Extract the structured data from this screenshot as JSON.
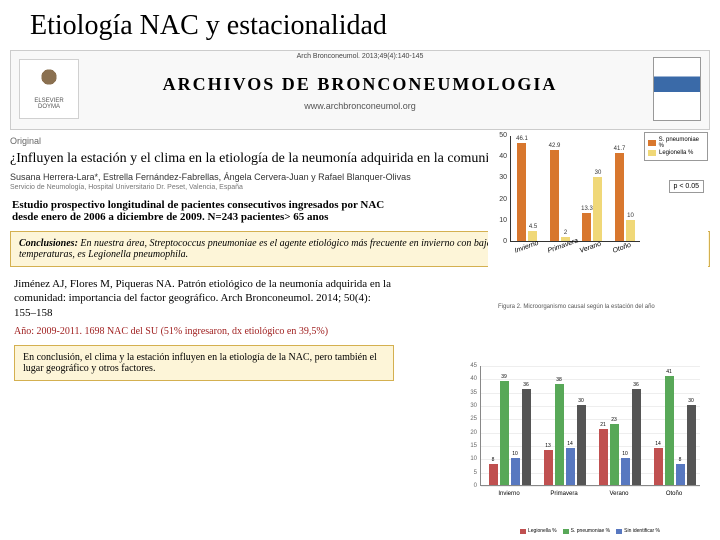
{
  "title": "Etiología NAC y estacionalidad",
  "journal": {
    "citation": "Arch Bronconeumol. 2013;49(4):140-145",
    "name": "ARCHIVOS DE BRONCONEUMOLOGIA",
    "url": "www.archbronconeumol.org",
    "elsevier1": "ELSEVIER",
    "elsevier2": "DOYMA"
  },
  "article": {
    "section": "Original",
    "title": "¿Influyen la estación y el clima en la etiología de la neumonía adquirida en la comunidad?",
    "authors": "Susana Herrera-Lara*, Estrella Fernández-Fabrellas, Ángela Cervera-Juan y Rafael Blanquer-Olivas",
    "affil": "Servicio de Neumología, Hospital Universitario Dr. Peset, Valencia, España"
  },
  "study": {
    "line1": "Estudio prospectivo longitudinal de pacientes consecutivos ingresados por NAC",
    "line2": "desde enero de 2006 a diciembre de 2009.        N=243 pacientes> 65 anos"
  },
  "conclusion1": {
    "lead": "Conclusiones:",
    "body": " En nuestra área, Streptococcus pneumoniae es el agente etiológico más frecuente en invierno con bajas temperaturas mientras que en verano, con altas temperaturas, es Legionella pneumophila."
  },
  "ref2": "Jiménez AJ,  Flores M, Piqueras NA. Patrón etiológico de la neumonía adquirida en la comunidad: importancia del factor geográfico. Arch Bronconeumol. 2014; 50(4): 155–158",
  "yearline": "Año: 2009-2011. 1698 NAC del SU (51% ingresaron, dx etiológico en 39,5%)",
  "finalbox": "En conclusión, el clima y la estación influyen en la etiología de la NAC, pero también el lugar geográfico y otros factores.",
  "chart1": {
    "type": "bar",
    "ylim": [
      0,
      50
    ],
    "ytick_step": 10,
    "yticks": [
      "0",
      "10",
      "20",
      "30",
      "40",
      "50"
    ],
    "colors": {
      "spneu": "#d8772e",
      "legio": "#f0d878"
    },
    "categories": [
      "Invierno",
      "Primavera",
      "Verano",
      "Otoño"
    ],
    "spneu_values": [
      46.1,
      42.9,
      13.3,
      41.7
    ],
    "legio_values": [
      4.5,
      2,
      30,
      10
    ],
    "legend": {
      "a": "S. pneumoniae %",
      "b": "Legionella %"
    },
    "pval": "p < 0.05",
    "caption": "Figura 2.  Microorganismo causal según la estación del año"
  },
  "chart2": {
    "type": "bar",
    "ylim": [
      0,
      45
    ],
    "ytick_step": 5,
    "yticks": [
      "0",
      "5",
      "10",
      "15",
      "20",
      "25",
      "30",
      "35",
      "40",
      "45"
    ],
    "categories": [
      "Invierno",
      "Primavera",
      "Verano",
      "Otoño"
    ],
    "colors": {
      "c1": "#c05050",
      "c2": "#58a858",
      "c3": "#5878c0",
      "c4": "#555555"
    },
    "legend": {
      "c1": "Legionella %",
      "c2": "S. pneumoniae %",
      "c3": "Sin identificar %",
      "c4": ""
    },
    "series1": [
      8,
      13,
      21,
      14
    ],
    "series2": [
      39,
      38,
      23,
      41
    ],
    "series3": [
      10,
      14,
      10,
      8
    ],
    "series4": [
      36,
      30,
      36,
      30
    ]
  }
}
